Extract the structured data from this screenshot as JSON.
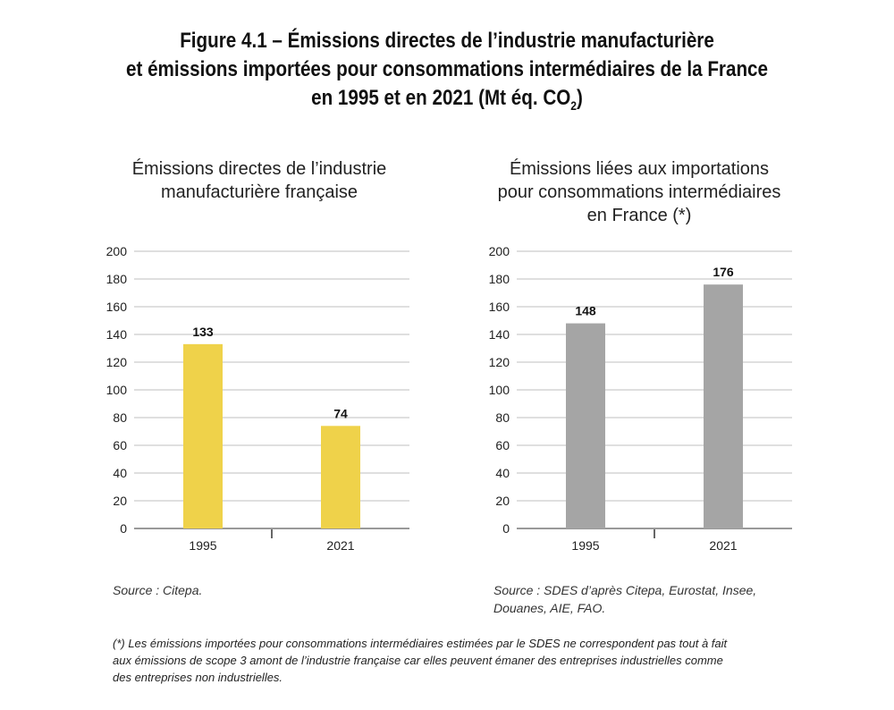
{
  "figure": {
    "title_line1": "Figure 4.1 – Émissions directes de l’industrie manufacturière",
    "title_line2": "et émissions importées pour consommations intermédiaires de la France",
    "title_line3_pre": "en 1995 et en 2021 (Mt éq. CO",
    "title_line3_sub": "2",
    "title_line3_post": ")"
  },
  "chart_data": [
    {
      "type": "bar",
      "title_line1": "Émissions directes de l’industrie",
      "title_line2": "manufacturière française",
      "title_line3": "",
      "categories": [
        "1995",
        "2021"
      ],
      "values": [
        133,
        74
      ],
      "value_labels": [
        "133",
        "74"
      ],
      "yticks": [
        "0",
        "20",
        "40",
        "60",
        "80",
        "100",
        "120",
        "140",
        "160",
        "180",
        "200"
      ],
      "ylim": [
        0,
        200
      ],
      "grid": true,
      "bar_color": "#efd24a",
      "source": "Source : Citepa.",
      "source_line2": ""
    },
    {
      "type": "bar",
      "title_line1": "Émissions liées aux importations",
      "title_line2": "pour consommations intermédiaires",
      "title_line3": "en France (*)",
      "categories": [
        "1995",
        "2021"
      ],
      "values": [
        148,
        176
      ],
      "value_labels": [
        "148",
        "176"
      ],
      "yticks": [
        "0",
        "20",
        "40",
        "60",
        "80",
        "100",
        "120",
        "140",
        "160",
        "180",
        "200"
      ],
      "ylim": [
        0,
        200
      ],
      "grid": true,
      "bar_color": "#a5a5a5",
      "source": "Source : SDES d’après Citepa, Eurostat, Insee,",
      "source_line2": "Douanes, AIE, FAO."
    }
  ],
  "footnote": {
    "line1": "(*) Les émissions importées pour consommations intermédiaires estimées par le SDES ne correspondent pas tout à fait",
    "line2": "aux émissions de scope 3 amont de l’industrie française car elles peuvent émaner des entreprises industrielles comme",
    "line3": "des entreprises non industrielles."
  }
}
